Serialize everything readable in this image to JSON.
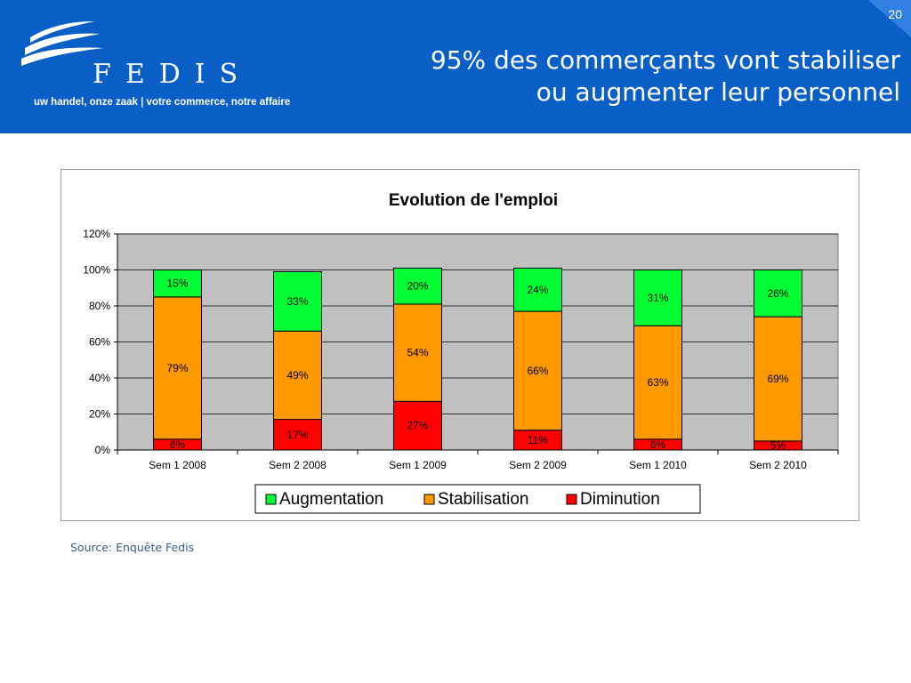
{
  "slide_number": "20",
  "logo": {
    "brand": "FEDIS",
    "tagline": "uw handel, onze zaak  |  votre commerce, notre affaire"
  },
  "header": {
    "title_line1": "95% des commerçants vont stabiliser",
    "title_line2": "ou augmenter leur personnel"
  },
  "source": "Source: Enquête Fedis",
  "colors": {
    "header_bg": "#0a5fc6",
    "plot_bg": "#c0c0c0",
    "augmentation": "#00ff33",
    "stabilisation": "#ff9900",
    "diminution": "#ff0000"
  },
  "chart_data": {
    "type": "bar",
    "stacked": true,
    "title": "Evolution de l'emploi",
    "categories": [
      "Sem 1 2008",
      "Sem 2 2008",
      "Sem 1 2009",
      "Sem 2 2009",
      "Sem 1 2010",
      "Sem 2 2010"
    ],
    "series": [
      {
        "name": "Diminution",
        "values": [
          6,
          17,
          27,
          11,
          6,
          5
        ],
        "labels": [
          "6%",
          "17%",
          "27%",
          "11%",
          "6%",
          "5%"
        ],
        "color": "#ff0000"
      },
      {
        "name": "Stabilisation",
        "values": [
          79,
          49,
          54,
          66,
          63,
          69
        ],
        "labels": [
          "79%",
          "49%",
          "54%",
          "66%",
          "63%",
          "69%"
        ],
        "color": "#ff9900"
      },
      {
        "name": "Augmentation",
        "values": [
          15,
          33,
          20,
          24,
          31,
          26
        ],
        "labels": [
          "15%",
          "33%",
          "20%",
          "24%",
          "31%",
          "26%"
        ],
        "color": "#00ff33"
      }
    ],
    "legend_order": [
      "Augmentation",
      "Stabilisation",
      "Diminution"
    ],
    "y_ticks": [
      "0%",
      "20%",
      "40%",
      "60%",
      "80%",
      "100%",
      "120%"
    ],
    "ylim": [
      0,
      120
    ],
    "grid": true,
    "legend_position": "bottom"
  }
}
